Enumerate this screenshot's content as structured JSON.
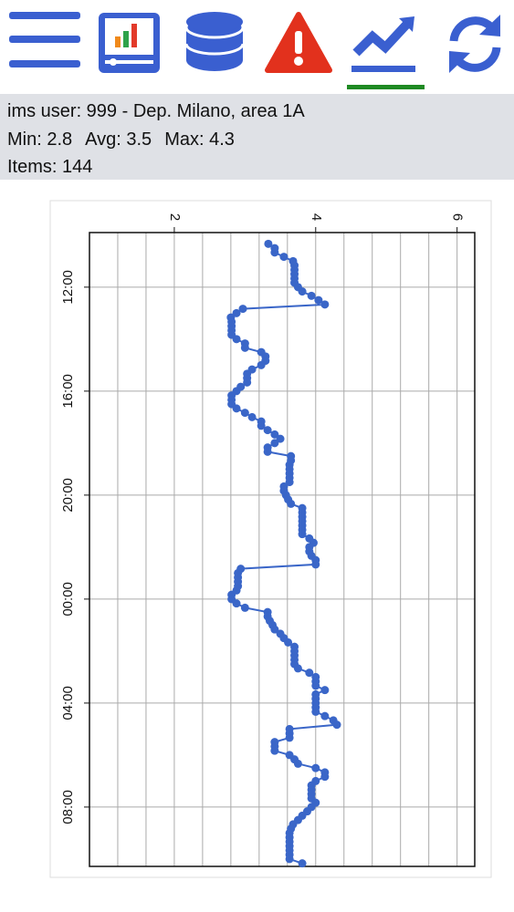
{
  "info": {
    "user": "ims user: 999 - Dep. Milano, area 1A",
    "min": "Min: 2.8",
    "avg": "Avg: 3.5",
    "max": "Max: 4.3",
    "items": "Items: 144"
  },
  "chart_data": {
    "type": "line",
    "color": "#3a66c8",
    "x": [
      620,
      630,
      640,
      650,
      660,
      670,
      680,
      690,
      700,
      710,
      720,
      730,
      740,
      750,
      760,
      770,
      780,
      790,
      800,
      810,
      820,
      830,
      840,
      850,
      860,
      870,
      880,
      890,
      900,
      910,
      920,
      930,
      940,
      950,
      960,
      970,
      980,
      990,
      1000,
      1010,
      1020,
      1030,
      1040,
      1050,
      1060,
      1070,
      1080,
      1090,
      1100,
      1110,
      1120,
      1130,
      1140,
      1150,
      1160,
      1170,
      1180,
      1190,
      1200,
      1210,
      1220,
      1230,
      1240,
      1250,
      1260,
      1270,
      1280,
      1290,
      1300,
      1310,
      1320,
      1330,
      1340,
      1350,
      1360,
      1370,
      1380,
      1390,
      1400,
      1410,
      1420,
      1430,
      1440,
      1450,
      1460,
      1470,
      1480,
      1490,
      1500,
      1510,
      1520,
      1530,
      1540,
      1550,
      1560,
      1570,
      1580,
      1590,
      1600,
      1610,
      1620,
      1630,
      1640,
      1650,
      1660,
      1670,
      1680,
      1690,
      1700,
      1710,
      1720,
      1730,
      1740,
      1750,
      1760,
      1770,
      1780,
      1790,
      1800,
      1810,
      1820,
      1830,
      1840,
      1850,
      1860,
      1870,
      1880,
      1890,
      1900,
      1910,
      1920,
      1930,
      1940,
      1950,
      1960,
      1970,
      1980,
      1990,
      2000,
      2010,
      2020,
      2030,
      2040,
      2050
    ],
    "values": [
      3.33,
      3.42,
      3.42,
      3.55,
      3.68,
      3.7,
      3.7,
      3.7,
      3.7,
      3.7,
      3.75,
      3.81,
      3.94,
      4.04,
      4.13,
      2.97,
      2.88,
      2.8,
      2.81,
      2.81,
      2.81,
      2.81,
      2.88,
      3.0,
      3.0,
      3.23,
      3.29,
      3.29,
      3.23,
      3.1,
      3.03,
      3.03,
      3.03,
      2.94,
      2.88,
      2.81,
      2.81,
      2.81,
      2.88,
      3.0,
      3.1,
      3.23,
      3.23,
      3.32,
      3.42,
      3.5,
      3.42,
      3.32,
      3.32,
      3.65,
      3.65,
      3.63,
      3.63,
      3.63,
      3.63,
      3.63,
      3.55,
      3.55,
      3.58,
      3.61,
      3.65,
      3.81,
      3.81,
      3.81,
      3.81,
      3.81,
      3.81,
      3.81,
      3.91,
      3.97,
      3.91,
      3.91,
      3.94,
      4.0,
      4.0,
      2.94,
      2.9,
      2.9,
      2.9,
      2.9,
      2.88,
      2.81,
      2.81,
      2.88,
      3.0,
      3.32,
      3.32,
      3.35,
      3.39,
      3.42,
      3.5,
      3.55,
      3.61,
      3.7,
      3.7,
      3.7,
      3.7,
      3.7,
      3.75,
      3.91,
      4.0,
      4.0,
      4.0,
      4.13,
      4.0,
      4.0,
      4.0,
      4.0,
      4.0,
      4.13,
      4.25,
      4.3,
      3.63,
      3.63,
      3.63,
      3.42,
      3.42,
      3.42,
      3.63,
      3.7,
      3.75,
      4.0,
      4.13,
      4.13,
      4.0,
      3.94,
      3.94,
      3.94,
      3.94,
      4.0,
      3.94,
      3.88,
      3.81,
      3.75,
      3.68,
      3.65,
      3.63,
      3.63,
      3.63,
      3.63,
      3.63,
      3.63,
      3.63,
      3.81
    ],
    "xlim": [
      594,
      2057
    ],
    "xticks": [
      {
        "value": 720,
        "label": "12:00"
      },
      {
        "value": 960,
        "label": "16:00"
      },
      {
        "value": 1200,
        "label": "20:00"
      },
      {
        "value": 1440,
        "label": "00:00"
      },
      {
        "value": 1680,
        "label": "04:00"
      },
      {
        "value": 1920,
        "label": "08:00"
      }
    ],
    "ylim": [
      0.8,
      6.25
    ],
    "yticks": [
      2,
      4,
      6
    ],
    "ygrid": [
      1.2,
      1.6,
      2,
      2.4,
      2.8,
      3.2,
      3.6,
      4,
      4.4,
      4.8,
      5.2,
      5.6,
      6
    ],
    "grid": true
  }
}
